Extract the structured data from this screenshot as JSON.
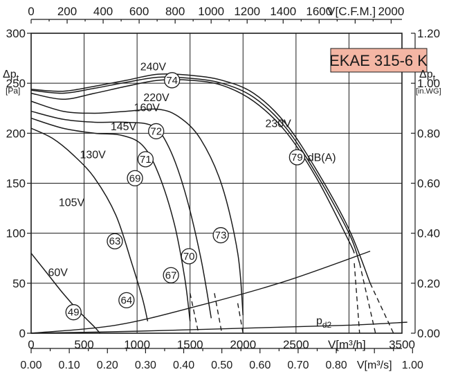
{
  "chart_data": {
    "type": "line",
    "title": "EKAE 315-6 K",
    "title_box_color": "#f4b6a4",
    "x_primary": {
      "label": "V[m³/h]",
      "range": [
        0,
        3500
      ],
      "ticks": [
        "0",
        "500",
        "1000",
        "1500",
        "2000",
        "2500",
        "3500"
      ]
    },
    "x_top": {
      "label": "V[C.F.M.]",
      "range": [
        0,
        2000
      ],
      "ticks": [
        "0",
        "200",
        "400",
        "600",
        "800",
        "1000",
        "1200",
        "1400",
        "1600",
        "2000"
      ]
    },
    "x_bottom": {
      "label": "V[m³/s]",
      "range": [
        0,
        1.0
      ],
      "ticks": [
        "0.00",
        "0.10",
        "0.20",
        "0.30",
        "0.40",
        "0.50",
        "0.60",
        "0.70",
        "0.80",
        "1.00"
      ]
    },
    "y_left": {
      "label_main": "Δp",
      "label_sub": "t",
      "unit": "[Pa]",
      "range": [
        0,
        300
      ],
      "ticks": [
        "0",
        "50",
        "100",
        "150",
        "200",
        "250",
        "300"
      ]
    },
    "y_right": {
      "label_main": "Δp",
      "label_sub": "t",
      "unit": "[in.WG]",
      "range": [
        0,
        1.2
      ],
      "ticks": [
        "0.00",
        "0.20",
        "0.40",
        "0.60",
        "0.80",
        "1.00",
        "1.20"
      ]
    },
    "grid": true,
    "series": [
      {
        "name": "240V",
        "x": [
          0,
          300,
          600,
          900,
          1200,
          1500,
          1800,
          2100,
          2400,
          2700,
          3000,
          3200
        ],
        "y": [
          244,
          242,
          247,
          253,
          259,
          258,
          253,
          240,
          210,
          162,
          104,
          50
        ]
      },
      {
        "name": "230V",
        "x": [
          0,
          300,
          600,
          900,
          1200,
          1500,
          1800,
          2100,
          2400,
          2700,
          3000,
          3100
        ],
        "y": [
          243,
          240,
          245,
          251,
          256,
          255,
          250,
          236,
          206,
          158,
          100,
          70
        ]
      },
      {
        "name": "220V",
        "x": [
          0,
          300,
          600,
          900,
          1200,
          1500,
          1800,
          2100,
          2400,
          2700,
          3000,
          3050
        ],
        "y": [
          240,
          234,
          240,
          247,
          253,
          253,
          248,
          232,
          202,
          154,
          92,
          80
        ]
      },
      {
        "name": "160V",
        "x": [
          0,
          300,
          600,
          900,
          1200,
          1400,
          1600,
          1800,
          1950,
          2000
        ],
        "y": [
          232,
          222,
          220,
          222,
          224,
          216,
          194,
          148,
          80,
          18
        ]
      },
      {
        "name": "145V",
        "x": [
          0,
          300,
          600,
          900,
          1150,
          1300,
          1450,
          1600,
          1700
        ],
        "y": [
          222,
          214,
          211,
          211,
          207,
          186,
          142,
          76,
          15
        ]
      },
      {
        "name": "130V",
        "x": [
          0,
          300,
          600,
          850,
          1050,
          1200,
          1350,
          1450,
          1500
        ],
        "y": [
          215,
          205,
          200,
          198,
          188,
          160,
          110,
          55,
          12
        ]
      },
      {
        "name": "105V",
        "x": [
          0,
          200,
          400,
          600,
          800,
          950,
          1050,
          1100
        ],
        "y": [
          205,
          195,
          178,
          155,
          118,
          70,
          35,
          12
        ]
      },
      {
        "name": "60V",
        "x": [
          0,
          150,
          300,
          450,
          600,
          650
        ],
        "y": [
          80,
          60,
          40,
          22,
          6,
          0
        ]
      }
    ],
    "system_curves": [
      {
        "name": "",
        "x": [
          0,
          800,
          1600,
          2400,
          3200
        ],
        "y": [
          0,
          8,
          28,
          52,
          82
        ]
      },
      {
        "name": "pd2",
        "x": [
          0,
          1000,
          2000,
          3000,
          3550
        ],
        "y": [
          0,
          2,
          5,
          8,
          11
        ]
      }
    ],
    "dashed_extensions": [
      {
        "x": [
          1500,
          1580
        ],
        "y": [
          40,
          0
        ]
      },
      {
        "x": [
          1730,
          1800
        ],
        "y": [
          40,
          0
        ]
      },
      {
        "x": [
          1950,
          2000
        ],
        "y": [
          30,
          0
        ]
      },
      {
        "x": [
          3050,
          3100
        ],
        "y": [
          70,
          0
        ]
      },
      {
        "x": [
          3100,
          3250
        ],
        "y": [
          70,
          0
        ]
      },
      {
        "x": [
          3200,
          3420
        ],
        "y": [
          50,
          0
        ]
      }
    ],
    "sound_labels": [
      {
        "value": "74",
        "x": 1330,
        "y": 253
      },
      {
        "value": "72",
        "x": 1180,
        "y": 202
      },
      {
        "value": "71",
        "x": 1080,
        "y": 174
      },
      {
        "value": "69",
        "x": 980,
        "y": 155
      },
      {
        "value": "63",
        "x": 790,
        "y": 92
      },
      {
        "value": "64",
        "x": 900,
        "y": 33
      },
      {
        "value": "67",
        "x": 1320,
        "y": 58
      },
      {
        "value": "70",
        "x": 1490,
        "y": 77
      },
      {
        "value": "73",
        "x": 1790,
        "y": 98
      },
      {
        "value": "79",
        "x": 2510,
        "y": 176
      },
      {
        "value": "49",
        "x": 400,
        "y": 21
      }
    ],
    "db_unit": "dB(A)"
  }
}
